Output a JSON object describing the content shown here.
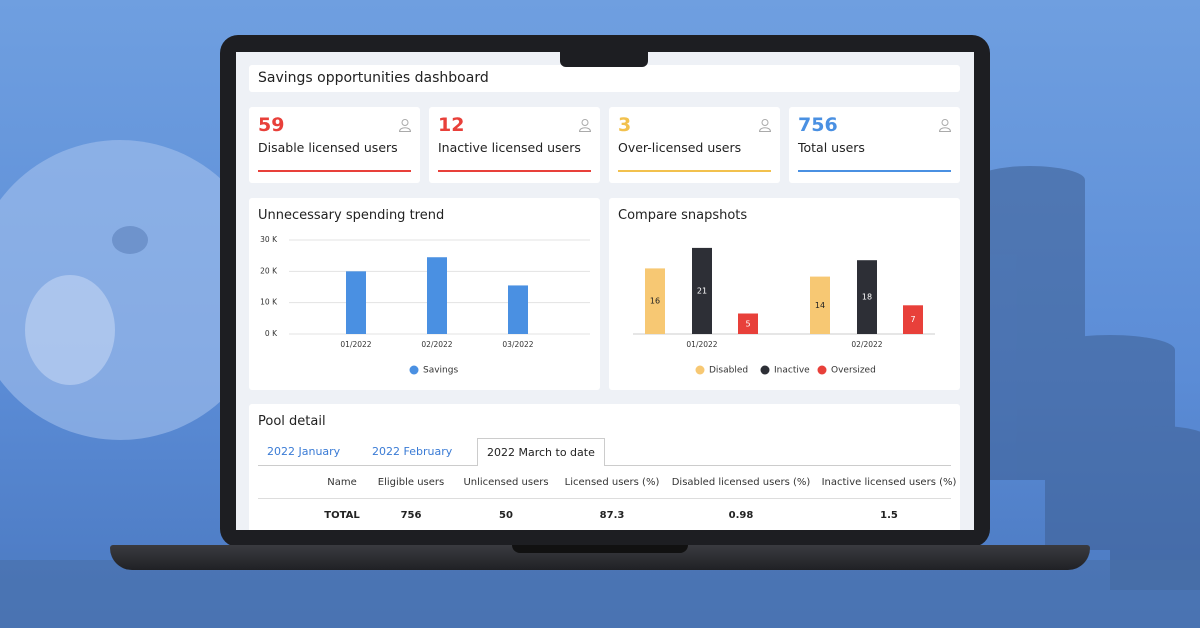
{
  "header": {
    "title": "Savings opportunities dashboard"
  },
  "kpis": [
    {
      "value": 59,
      "label": "Disable licensed users",
      "color": "#e8403a"
    },
    {
      "value": 12,
      "label": "Inactive licensed users",
      "color": "#e8403a"
    },
    {
      "value": 3,
      "label": "Over-licensed users",
      "color": "#f2c14e"
    },
    {
      "value": 756,
      "label": "Total users",
      "color": "#4a90e2"
    }
  ],
  "chart_data": [
    {
      "type": "bar",
      "title": "Unnecessary spending trend",
      "categories": [
        "01/2022",
        "02/2022",
        "03/2022"
      ],
      "series": [
        {
          "name": "Savings",
          "color": "#4a90e2",
          "values": [
            20000,
            24500,
            15500
          ]
        }
      ],
      "ylim": [
        0,
        30000
      ],
      "yticks": [
        {
          "value": 0,
          "label": "0 K"
        },
        {
          "value": 10000,
          "label": "10 K"
        },
        {
          "value": 20000,
          "label": "20 K"
        },
        {
          "value": 30000,
          "label": "30 K"
        }
      ],
      "grid": true
    },
    {
      "type": "grouped-bar",
      "title": "Compare snapshots",
      "categories": [
        "01/2022",
        "02/2022"
      ],
      "series": [
        {
          "name": "Disabled",
          "color": "#f7c873",
          "values": [
            16,
            14
          ]
        },
        {
          "name": "Inactive",
          "color": "#2d2f36",
          "values": [
            21,
            18
          ]
        },
        {
          "name": "Oversized",
          "color": "#e8403a",
          "values": [
            5,
            7
          ]
        }
      ]
    }
  ],
  "pool": {
    "title": "Pool detail",
    "tabs": [
      "2022 January",
      "2022 February",
      "2022 March to date"
    ],
    "active_tab": 2,
    "columns": [
      "Name",
      "Eligible users",
      "Unlicensed users",
      "Licensed users (%)",
      "Disabled licensed users (%)",
      "Inactive licensed users (%)"
    ],
    "rows": [
      [
        "TOTAL",
        756,
        50,
        87.3,
        0.98,
        1.5
      ]
    ]
  }
}
